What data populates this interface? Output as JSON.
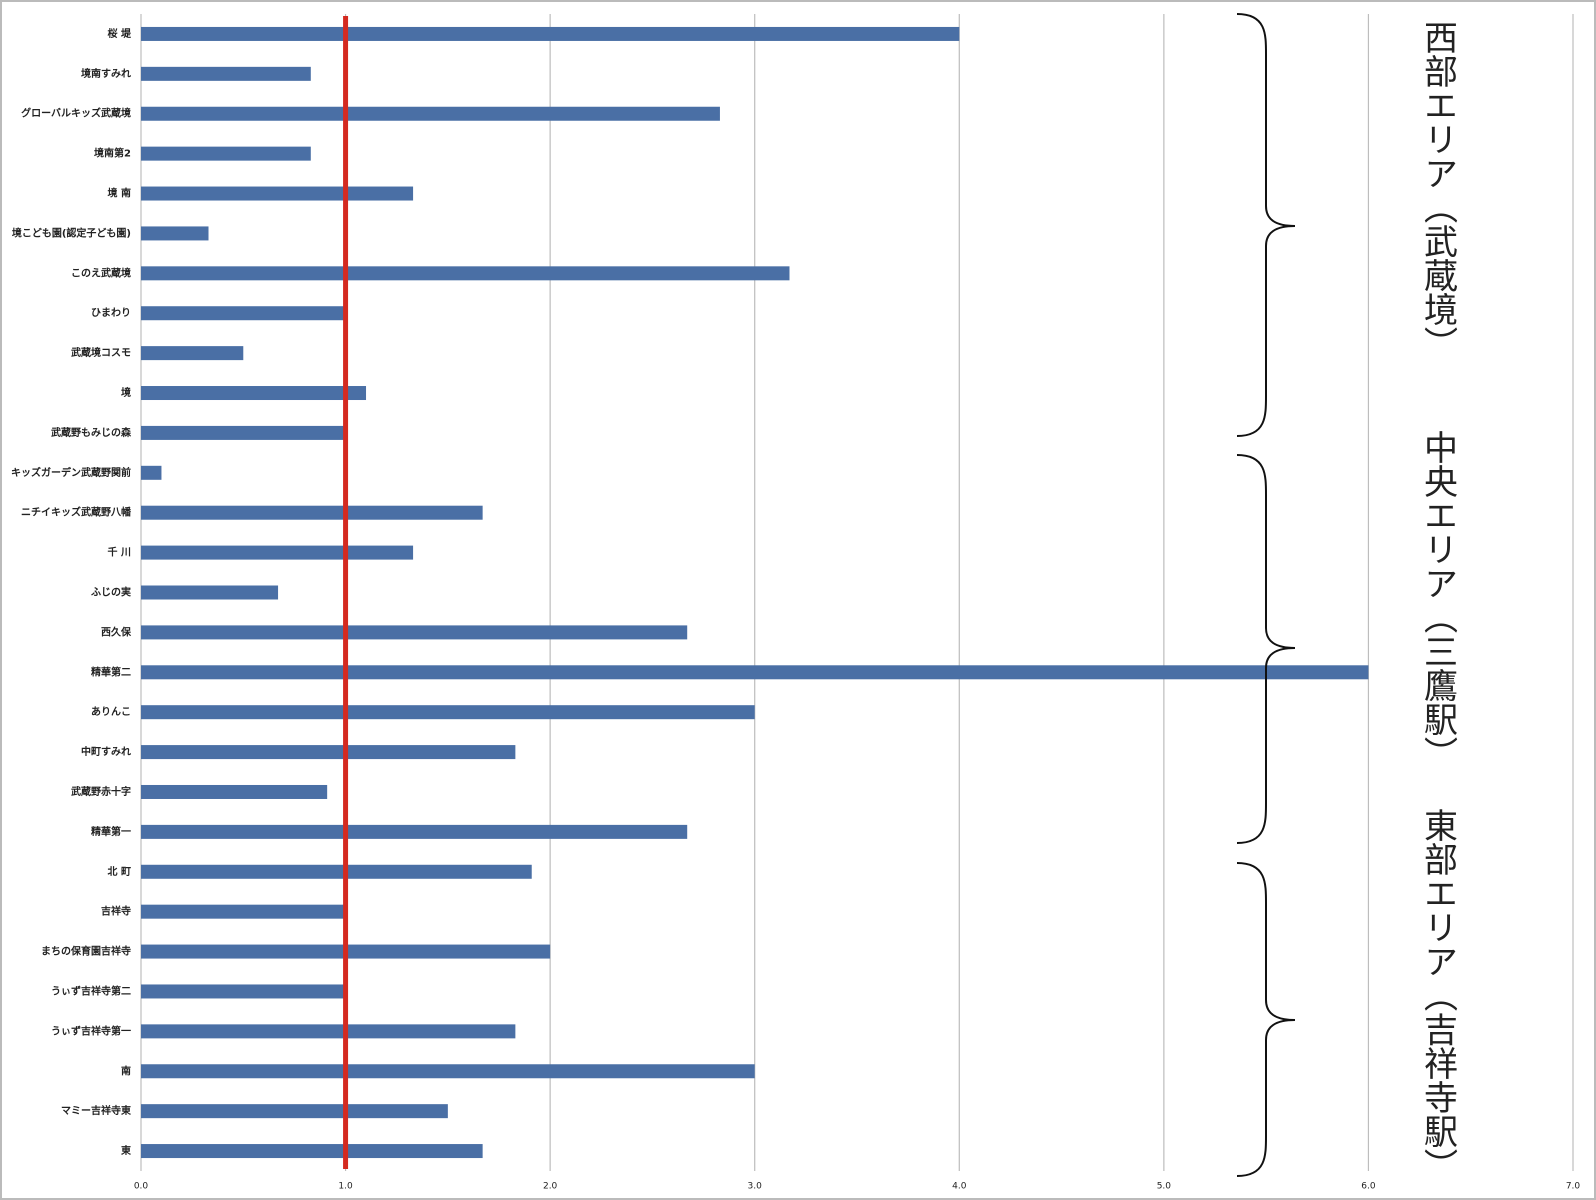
{
  "chart_data": {
    "type": "hbar",
    "categories": [
      "桜 堤",
      "境南すみれ",
      "グローバルキッズ武蔵境",
      "境南第2",
      "境 南",
      "境こども園(認定子ども園)",
      "このえ武蔵境",
      "ひまわり",
      "武蔵境コスモ",
      "境",
      "武蔵野もみじの森",
      "キッズガーデン武蔵野関前",
      "ニチイキッズ武蔵野八幡",
      "千 川",
      "ふじの実",
      "西久保",
      "精華第二",
      "ありんこ",
      "中町すみれ",
      "武蔵野赤十字",
      "精華第一",
      "北 町",
      "吉祥寺",
      "まちの保育園吉祥寺",
      "うぃず吉祥寺第二",
      "うぃず吉祥寺第一",
      "南",
      "マミー吉祥寺東",
      "東"
    ],
    "values": [
      4.0,
      0.83,
      2.83,
      0.83,
      1.33,
      0.33,
      3.17,
      1.0,
      0.5,
      1.1,
      1.0,
      0.1,
      1.67,
      1.33,
      0.67,
      2.67,
      6.0,
      3.0,
      1.83,
      0.91,
      2.67,
      1.91,
      1.0,
      2.0,
      1.0,
      1.83,
      3.0,
      1.5,
      1.67
    ],
    "color": "#4a6fa5",
    "xlim": [
      0,
      7
    ],
    "xticks": [
      {
        "value": 0,
        "label": "0.0"
      },
      {
        "value": 1,
        "label": "1.0"
      },
      {
        "value": 2,
        "label": "2.0"
      },
      {
        "value": 3,
        "label": "3.0"
      },
      {
        "value": 4,
        "label": "4.0"
      },
      {
        "value": 5,
        "label": "5.0"
      },
      {
        "value": 6,
        "label": "6.0"
      },
      {
        "value": 7,
        "label": "7.0"
      }
    ],
    "grid": true,
    "reference_line": {
      "value": 1,
      "color": "#d42a20"
    },
    "annotations": [
      "西部エリア（武蔵境）",
      "中央エリア（三鷹駅）",
      "東部エリア（吉祥寺駅）"
    ]
  }
}
